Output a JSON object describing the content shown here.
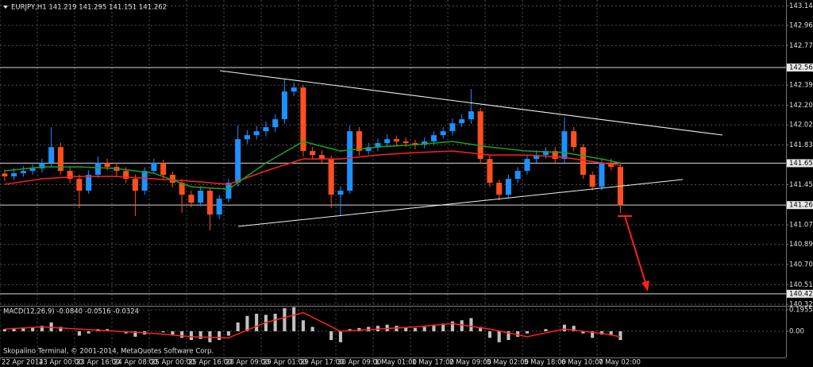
{
  "chart_data": [
    {
      "type": "candlestick",
      "title": "EURJPY,H1  141.219 141.295 141.151 141.262",
      "up_color": "#1e90ff",
      "down_color": "#ff4f1f",
      "open": [
        141.56,
        141.533,
        141.563,
        141.585,
        141.608,
        141.66,
        141.81,
        141.585,
        141.51,
        141.398,
        141.548,
        141.66,
        141.623,
        141.585,
        141.51,
        141.398,
        141.585,
        141.66,
        141.548,
        141.473,
        141.36,
        141.285,
        141.398,
        141.173,
        141.323,
        141.473,
        141.885,
        141.923,
        141.96,
        141.998,
        142.073,
        142.335,
        142.373,
        141.773,
        141.735,
        141.698,
        141.36,
        141.398,
        141.96,
        141.773,
        141.81,
        141.848,
        141.885,
        141.863,
        141.848,
        141.833,
        141.863,
        141.923,
        141.96,
        142.035,
        142.073,
        142.148,
        141.698,
        141.473,
        141.36,
        141.51,
        141.585,
        141.698,
        141.735,
        141.773,
        141.698,
        141.96,
        141.81,
        141.548,
        141.435,
        141.66,
        141.623
      ],
      "high": [
        141.6,
        141.61,
        141.63,
        141.65,
        141.7,
        141.998,
        141.85,
        141.62,
        141.55,
        141.59,
        141.72,
        141.7,
        141.66,
        141.62,
        141.55,
        141.62,
        141.7,
        141.69,
        141.58,
        141.51,
        141.4,
        141.44,
        141.43,
        141.36,
        141.51,
        142.013,
        141.97,
        142.01,
        142.05,
        142.12,
        142.448,
        142.42,
        142.4,
        141.81,
        141.78,
        141.73,
        141.44,
        142.01,
        142.0,
        141.85,
        141.89,
        141.93,
        141.92,
        141.9,
        141.88,
        141.9,
        141.96,
        142.0,
        142.08,
        142.12,
        142.358,
        142.18,
        141.73,
        141.5,
        141.55,
        141.62,
        141.74,
        141.78,
        141.81,
        141.81,
        142.088,
        142.0,
        141.84,
        141.58,
        141.7,
        141.7,
        141.65
      ],
      "low": [
        141.49,
        141.5,
        141.53,
        141.55,
        141.57,
        141.62,
        141.55,
        141.47,
        141.233,
        141.37,
        141.52,
        141.59,
        141.54,
        141.47,
        141.158,
        141.36,
        141.56,
        141.51,
        141.43,
        141.188,
        141.24,
        141.25,
        141.023,
        141.13,
        141.29,
        141.44,
        141.84,
        141.88,
        141.91,
        141.95,
        142.03,
        142.29,
        141.72,
        141.69,
        141.65,
        141.233,
        141.158,
        141.37,
        141.73,
        141.74,
        141.77,
        141.81,
        141.82,
        141.81,
        141.79,
        141.8,
        141.83,
        141.89,
        141.92,
        142.0,
        142.03,
        141.65,
        141.43,
        141.308,
        141.33,
        141.47,
        141.55,
        141.66,
        141.7,
        141.66,
        141.66,
        141.77,
        141.51,
        141.4,
        141.4,
        141.59,
        141.188
      ],
      "close": [
        141.533,
        141.563,
        141.585,
        141.608,
        141.66,
        141.81,
        141.585,
        141.51,
        141.398,
        141.548,
        141.66,
        141.623,
        141.585,
        141.51,
        141.398,
        141.585,
        141.66,
        141.548,
        141.473,
        141.36,
        141.285,
        141.398,
        141.173,
        141.323,
        141.473,
        141.885,
        141.923,
        141.96,
        141.998,
        142.073,
        142.335,
        142.373,
        141.773,
        141.735,
        141.698,
        141.36,
        141.398,
        141.96,
        141.773,
        141.81,
        141.848,
        141.885,
        141.863,
        141.848,
        141.833,
        141.863,
        141.923,
        141.96,
        142.035,
        142.073,
        142.148,
        141.698,
        141.473,
        141.36,
        141.51,
        141.585,
        141.698,
        141.735,
        141.773,
        141.698,
        141.96,
        141.81,
        141.548,
        141.435,
        141.66,
        141.623,
        141.262
      ],
      "series": [
        {
          "color": "#ff2020",
          "x": [
            0,
            4,
            8,
            12,
            16,
            20,
            24,
            28,
            32,
            36,
            40,
            44,
            48,
            52,
            56,
            60,
            64,
            66
          ],
          "values": [
            141.458,
            141.51,
            141.533,
            141.533,
            141.51,
            141.488,
            141.458,
            141.585,
            141.698,
            141.698,
            141.735,
            141.758,
            141.773,
            141.735,
            141.735,
            141.713,
            141.66,
            141.638
          ]
        },
        {
          "color": "#1fa01f",
          "x": [
            0,
            4,
            8,
            12,
            16,
            20,
            24,
            28,
            32,
            36,
            40,
            44,
            48,
            52,
            56,
            60,
            64,
            66
          ],
          "values": [
            141.585,
            141.623,
            141.623,
            141.608,
            141.563,
            141.435,
            141.413,
            141.66,
            141.863,
            141.773,
            141.81,
            141.833,
            141.863,
            141.81,
            141.773,
            141.758,
            141.698,
            141.66
          ]
        }
      ],
      "xlim": [
        -0.5,
        83.75
      ],
      "xticks": [
        {
          "value": -0.5,
          "label": "22 Apr 2014"
        },
        {
          "value": 3.5,
          "label": "23 Apr 00:00"
        },
        {
          "value": 7.5,
          "label": "23 Apr 16:00"
        },
        {
          "value": 11.5,
          "label": "24 Apr 08:00"
        },
        {
          "value": 15.5,
          "label": "25 Apr 00:00"
        },
        {
          "value": 19.5,
          "label": "25 Apr 16:00"
        },
        {
          "value": 23.5,
          "label": "28 Apr 09:00"
        },
        {
          "value": 27.5,
          "label": "29 Apr 01:00"
        },
        {
          "value": 31.5,
          "label": "29 Apr 17:00"
        },
        {
          "value": 35.5,
          "label": "30 Apr 09:00"
        },
        {
          "value": 39.5,
          "label": "1 May 01:00"
        },
        {
          "value": 43.5,
          "label": "1 May 17:00"
        },
        {
          "value": 47.5,
          "label": "2 May 09:00"
        },
        {
          "value": 51.5,
          "label": "5 May 02:00"
        },
        {
          "value": 55.5,
          "label": "5 May 18:00"
        },
        {
          "value": 59.5,
          "label": "6 May 10:00"
        },
        {
          "value": 63.5,
          "label": "7 May 02:00"
        }
      ],
      "ylim": [
        140.31,
        143.2
      ],
      "yticks": [
        143.145,
        {
          "value": 142.96,
          "label": "142.960"
        },
        {
          "value": 142.77,
          "label": "142.770"
        },
        142.395,
        142.205,
        {
          "value": 142.02,
          "label": "142.020"
        },
        {
          "value": 141.83,
          "label": "141.830"
        },
        141.455,
        141.075,
        {
          "value": 140.89,
          "label": "140.890"
        },
        {
          "value": 140.7,
          "label": "140.700"
        },
        {
          "value": 140.51,
          "label": "140.510"
        },
        140.325
      ],
      "levels": [
        142.562,
        141.658,
        141.262,
        140.424
      ],
      "grid": true
    },
    {
      "type": "macd",
      "title": "MACD(12,26,9) -0.0840 -0.0516 -0.0324",
      "color": "#c0c0c0",
      "values": [
        0.02,
        0.03,
        0.03,
        0.04,
        0.05,
        0.08,
        0.04,
        0.0,
        -0.04,
        -0.02,
        0.02,
        0.02,
        0.0,
        -0.02,
        -0.05,
        -0.03,
        0.0,
        -0.01,
        -0.03,
        -0.06,
        -0.08,
        -0.07,
        -0.1,
        -0.08,
        -0.04,
        0.08,
        0.14,
        0.16,
        0.15,
        0.16,
        0.21,
        0.22,
        0.1,
        0.04,
        0.0,
        -0.08,
        -0.1,
        0.02,
        0.03,
        0.04,
        0.05,
        0.06,
        0.05,
        0.04,
        0.03,
        0.04,
        0.06,
        0.07,
        0.09,
        0.1,
        0.12,
        0.04,
        -0.06,
        -0.1,
        -0.08,
        -0.05,
        -0.02,
        0.0,
        0.02,
        0.0,
        0.06,
        0.05,
        -0.02,
        -0.06,
        -0.03,
        -0.03,
        -0.08
      ],
      "series": [
        {
          "color": "#ff2020",
          "x": [
            0,
            4,
            8,
            12,
            16,
            20,
            24,
            28,
            32,
            36,
            40,
            44,
            48,
            52,
            56,
            60,
            64,
            66
          ],
          "values": [
            0.02,
            0.04,
            0.02,
            0.0,
            -0.02,
            -0.05,
            -0.06,
            0.08,
            0.17,
            0.0,
            0.02,
            0.04,
            0.07,
            0.02,
            -0.05,
            0.02,
            -0.02,
            -0.05
          ]
        }
      ],
      "xlim": [
        -0.5,
        83.75
      ],
      "ylim": [
        -0.239,
        0.232
      ],
      "yticks": [
        0.1955,
        {
          "value": 0,
          "label": "0.00"
        }
      ]
    }
  ],
  "footer": "Skopalino Terminal, © 2001-2014, MetaQuotes Software Corp."
}
